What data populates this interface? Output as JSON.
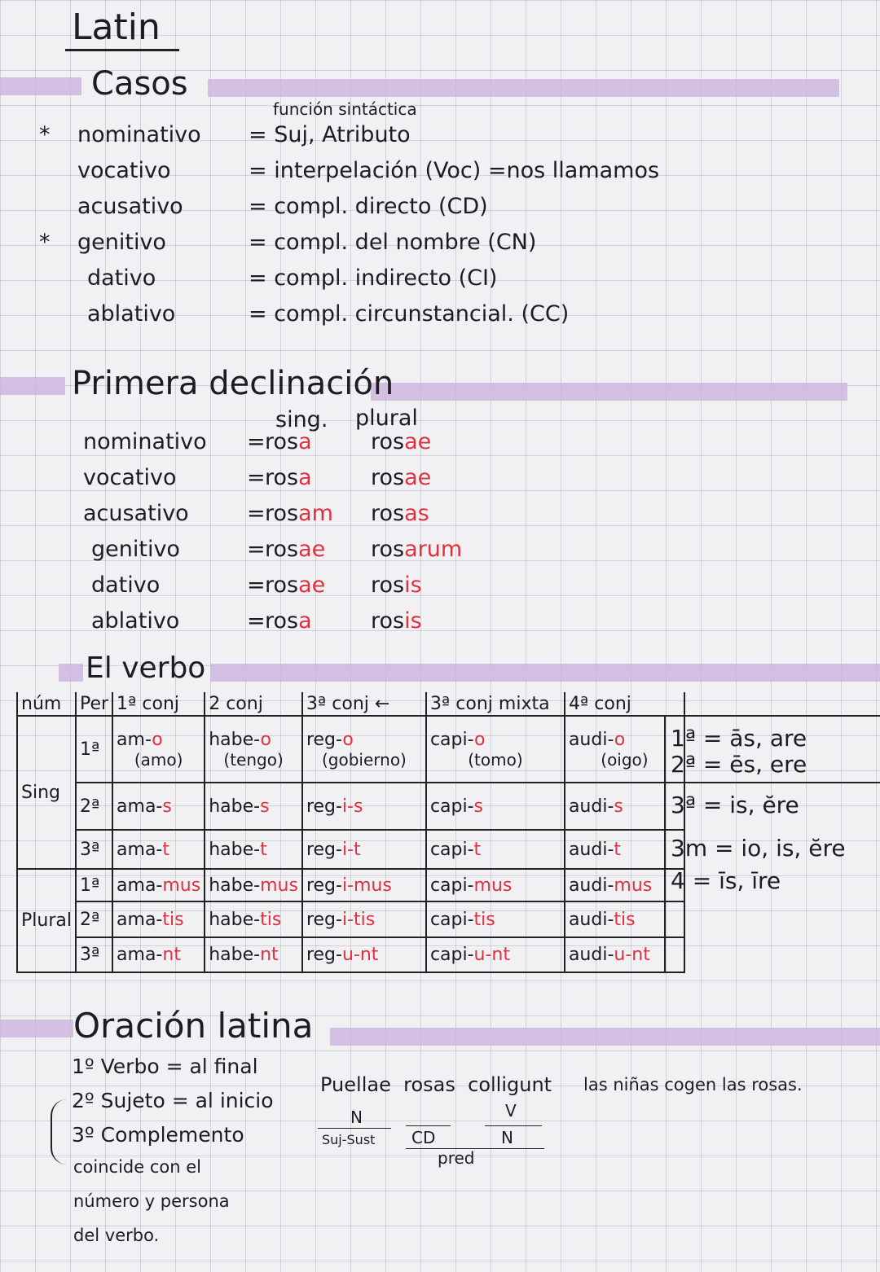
{
  "title": "Latin",
  "casos": {
    "heading": "Casos",
    "note": "función sintáctica",
    "rows": [
      {
        "mark": "*",
        "case": "nominativo",
        "meaning": "= Suj, Atributo"
      },
      {
        "mark": "",
        "case": "vocativo",
        "meaning": "= interpelación (Voc) =nos llamamos"
      },
      {
        "mark": "",
        "case": "acusativo",
        "meaning": "= compl. directo (CD)"
      },
      {
        "mark": "*",
        "case": "genitivo",
        "meaning": "= compl. del nombre (CN)"
      },
      {
        "mark": "",
        "case": "dativo",
        "meaning": "= compl. indirecto (CI)"
      },
      {
        "mark": "",
        "case": "ablativo",
        "meaning": "= compl. circunstancial. (CC)"
      }
    ]
  },
  "primera": {
    "heading": "Primera declinación",
    "col_sing": "sing.",
    "col_plural": "plural",
    "rows": [
      {
        "case": "nominativo",
        "s_stem": "ros",
        "s_end": "a",
        "p_stem": "ros",
        "p_end": "ae"
      },
      {
        "case": "vocativo",
        "s_stem": "ros",
        "s_end": "a",
        "p_stem": "ros",
        "p_end": "ae"
      },
      {
        "case": "acusativo",
        "s_stem": "ros",
        "s_end": "am",
        "p_stem": "ros",
        "p_end": "as"
      },
      {
        "case": "genitivo",
        "s_stem": "ros",
        "s_end": "ae",
        "p_stem": "ros",
        "p_end": "arum"
      },
      {
        "case": "dativo",
        "s_stem": "ros",
        "s_end": "ae",
        "p_stem": "ros",
        "p_end": "is"
      },
      {
        "case": "ablativo",
        "s_stem": "ros",
        "s_end": "a",
        "p_stem": "ros",
        "p_end": "is"
      }
    ]
  },
  "verbo": {
    "heading": "El verbo",
    "headers": [
      "núm",
      "Per",
      "1ª conj",
      "2 conj",
      "3ª conj ←",
      "3ª conj mixta",
      "4ª conj"
    ],
    "numbers": [
      "Sing",
      "Plural"
    ],
    "rows": [
      {
        "per": "1ª",
        "cells": [
          {
            "stem": "am-",
            "end": "o",
            "gloss": "(amo)"
          },
          {
            "stem": "habe-",
            "end": "o",
            "gloss": "(tengo)"
          },
          {
            "stem": "reg-",
            "end": "o",
            "gloss": "(gobierno)"
          },
          {
            "stem": "capi-",
            "end": "o",
            "gloss": "(tomo)"
          },
          {
            "stem": "audi-",
            "end": "o",
            "gloss": "(oigo)"
          }
        ]
      },
      {
        "per": "2ª",
        "cells": [
          {
            "stem": "ama-",
            "end": "s"
          },
          {
            "stem": "habe-",
            "end": "s"
          },
          {
            "stem": "reg-",
            "end": "i-s"
          },
          {
            "stem": "capi-",
            "end": "s"
          },
          {
            "stem": "audi-",
            "end": "s"
          }
        ]
      },
      {
        "per": "3ª",
        "cells": [
          {
            "stem": "ama-",
            "end": "t"
          },
          {
            "stem": "habe-",
            "end": "t"
          },
          {
            "stem": "reg-",
            "end": "i-t"
          },
          {
            "stem": "capi-",
            "end": "t"
          },
          {
            "stem": "audi-",
            "end": "t"
          }
        ]
      },
      {
        "per": "1ª",
        "cells": [
          {
            "stem": "ama-",
            "end": "mus"
          },
          {
            "stem": "habe-",
            "end": "mus"
          },
          {
            "stem": "reg-",
            "end": "i-mus"
          },
          {
            "stem": "capi-",
            "end": "mus"
          },
          {
            "stem": "audi-",
            "end": "mus"
          }
        ]
      },
      {
        "per": "2ª",
        "cells": [
          {
            "stem": "ama-",
            "end": "tis"
          },
          {
            "stem": "habe-",
            "end": "tis"
          },
          {
            "stem": "reg-",
            "end": "i-tis"
          },
          {
            "stem": "capi-",
            "end": "tis"
          },
          {
            "stem": "audi-",
            "end": "tis"
          }
        ]
      },
      {
        "per": "3ª",
        "cells": [
          {
            "stem": "ama-",
            "end": "nt"
          },
          {
            "stem": "habe-",
            "end": "nt"
          },
          {
            "stem": "reg-",
            "end": "u-nt"
          },
          {
            "stem": "capi-",
            "end": "u-nt"
          },
          {
            "stem": "audi-",
            "end": "u-nt"
          }
        ]
      }
    ],
    "side_notes": [
      "1ª = ās, are",
      "2ª = ēs, ere",
      "3ª = is, ĕre",
      "3m = io, is, ĕre",
      "4 = īs, īre"
    ]
  },
  "oracion": {
    "heading": "Oración latina",
    "rules": [
      "1º Verbo = al final",
      "2º Sujeto = al inicio",
      "3º Complemento",
      "coincide con el",
      "número y persona",
      "del verbo."
    ],
    "sentence": [
      "Puellae",
      "rosas",
      "colligunt"
    ],
    "translation": "las niñas cogen las rosas.",
    "analysis": {
      "n1": "N",
      "suj": "Suj-Sust",
      "cd": "CD",
      "v": "V",
      "n2": "N",
      "pred": "pred"
    }
  },
  "colors": {
    "paper": "#f1f0f3",
    "highlighter": "#cdb6de",
    "ink": "#1c1c22",
    "red_ink": "#e0313f"
  }
}
